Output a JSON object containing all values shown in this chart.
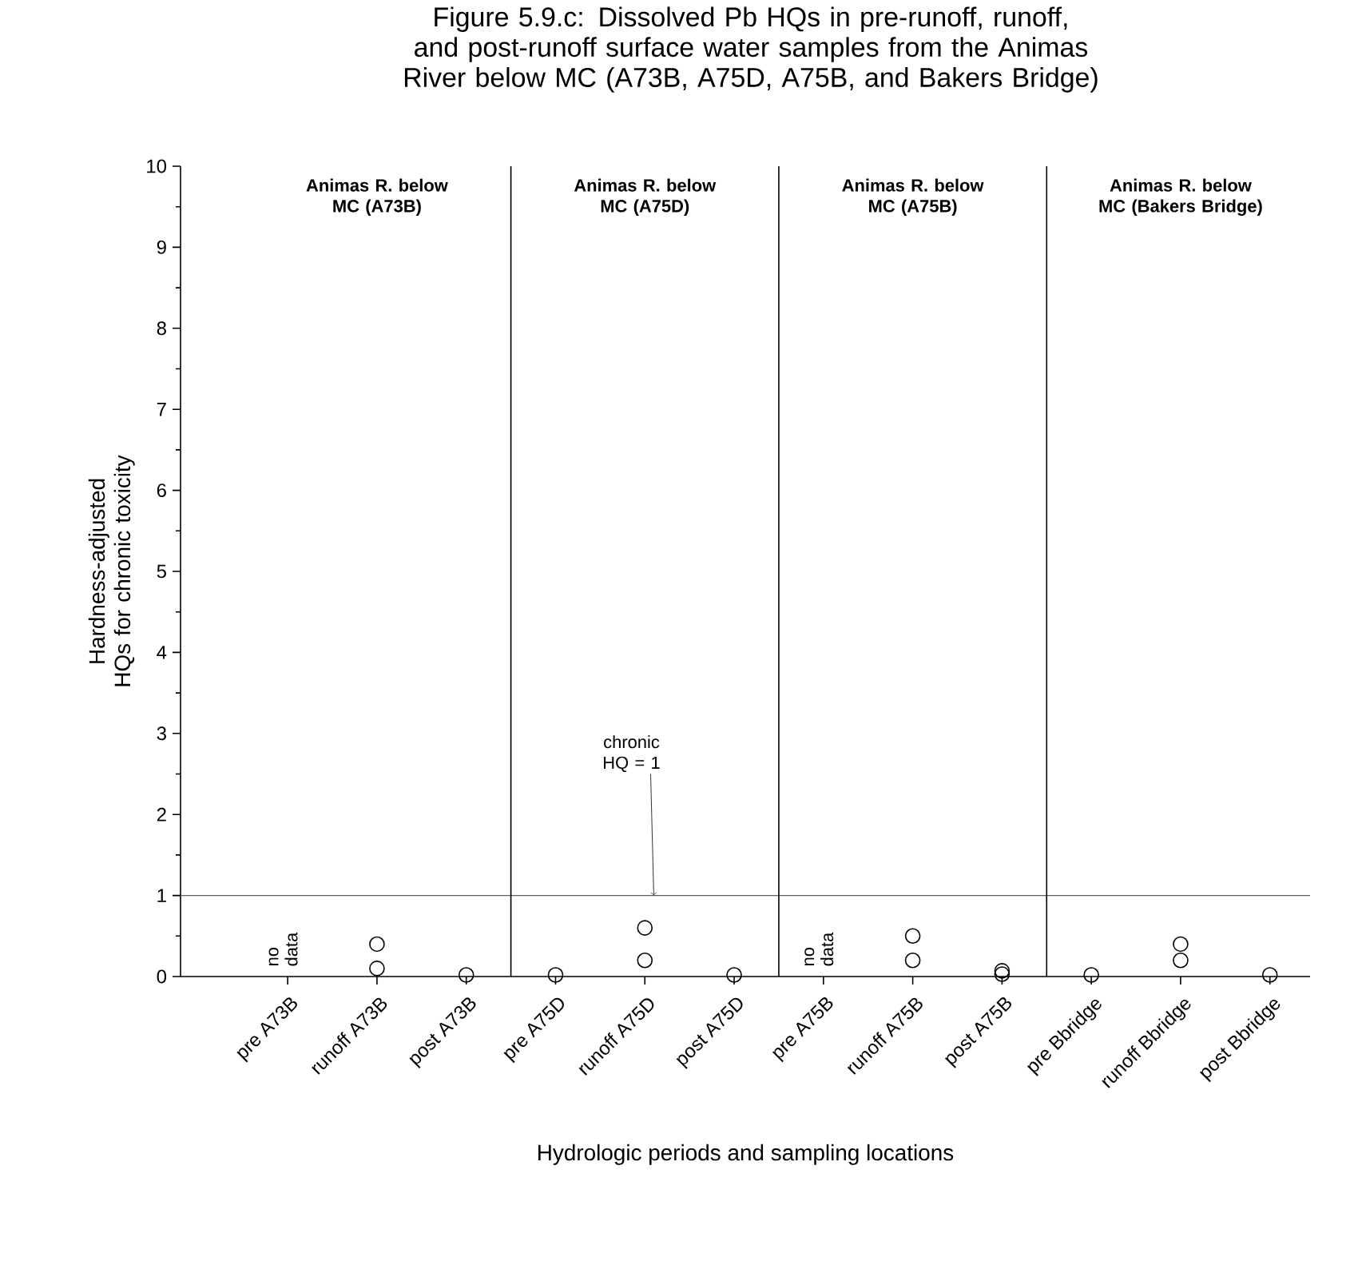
{
  "chart_data": {
    "type": "scatter",
    "title": "Figure 5.9.c: Dissolved Pb HQs in pre-runoff, runoff, and post-runoff surface water samples from the Animas River below MC (A73B, A75D, A75B, and Bakers Bridge)",
    "xlabel": "Hydrologic periods and sampling locations",
    "ylabel": "Hardness-adjusted HQs for chronic toxicity",
    "categories": [
      "pre A73B",
      "runoff A73B",
      "post A73B",
      "pre A75D",
      "runoff  A75D",
      "post A75D",
      "pre A75B",
      "runoff A75B",
      "post A75B",
      "pre Bbridge",
      "runoff Bbridge",
      "post Bbridge"
    ],
    "series": [
      {
        "color": "#000000",
        "values": [
          null,
          0.4,
          0.02,
          0.02,
          0.6,
          0.02,
          null,
          0.5,
          0.07,
          0.02,
          0.4,
          0.02
        ]
      },
      {
        "color": "#000000",
        "values": [
          null,
          0.1,
          null,
          null,
          0.2,
          null,
          null,
          0.2,
          0.03,
          null,
          0.2,
          null
        ]
      }
    ],
    "marker": "circle",
    "ylim": [
      0,
      10
    ],
    "yticks": [
      0,
      1,
      2,
      3,
      4,
      5,
      6,
      7,
      8,
      9,
      10
    ],
    "ref_lines": [
      {
        "axis": "y",
        "value": 1,
        "label": "chronic HQ = 1",
        "color": "#606060"
      }
    ],
    "annotations": [
      "Animas R. below MC (A73B)",
      "Animas R. below MC (A75D)",
      "Animas R. below MC (A75B)",
      "Animas R. below MC (Bakers Bridge)",
      "no data",
      "no data"
    ],
    "grid": false
  }
}
